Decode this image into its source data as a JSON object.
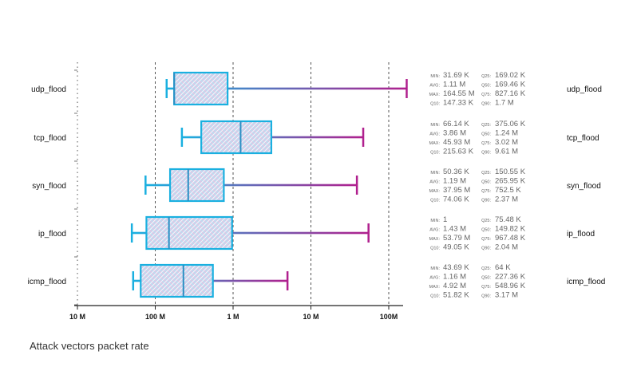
{
  "chart_data": {
    "type": "boxplot",
    "title": "Attack vectors packet rate",
    "x_scale": "log",
    "x_ticks": [
      {
        "value": 10000000,
        "label": "10 M"
      },
      {
        "value": 100000000,
        "label": "100 M"
      },
      {
        "value": 1000000000,
        "label": "1 M"
      },
      {
        "value": 10000000000,
        "label": "10 M"
      },
      {
        "value": 100000000000,
        "label": "100M"
      }
    ],
    "grid": true,
    "colors": {
      "start": "#1ab0e0",
      "end": "#b0208e",
      "grid": "#555555"
    },
    "stat_keys": [
      "MIN:",
      "AVG:",
      "MAX:",
      "Q10:",
      "Q25:",
      "Q50:",
      "Q75:",
      "Q90:"
    ],
    "categories": [
      {
        "name": "udp_flood",
        "box": {
          "whisker_low": 140000000,
          "q_left": 175000000,
          "median": 175000000,
          "q_right": 850000000,
          "whisker_high": 170000000000
        },
        "stats": {
          "min": "31.69 K",
          "avg": "1.11 M",
          "max": "164.55 M",
          "q10": "147.33 K",
          "q25": "169.02 K",
          "q50": "169.46 K",
          "q75": "827.16 K",
          "q90": "1.7 M"
        }
      },
      {
        "name": "tcp_flood",
        "box": {
          "whisker_low": 220000000,
          "q_left": 390000000,
          "median": 1250000000,
          "q_right": 3100000000,
          "whisker_high": 47000000000
        },
        "stats": {
          "min": "66.14 K",
          "avg": "3.86 M",
          "max": "45.93 M",
          "q10": "215.63 K",
          "q25": "375.06 K",
          "q50": "1.24 M",
          "q75": "3.02 M",
          "q90": "9.61 M"
        }
      },
      {
        "name": "syn_flood",
        "box": {
          "whisker_low": 75000000,
          "q_left": 155000000,
          "median": 265000000,
          "q_right": 760000000,
          "whisker_high": 39000000000
        },
        "stats": {
          "min": "50.36 K",
          "avg": "1.19 M",
          "max": "37.95 M",
          "q10": "74.06 K",
          "q25": "150.55 K",
          "q50": "265.95 K",
          "q75": "752.5 K",
          "q90": "2.37 M"
        }
      },
      {
        "name": "ip_flood",
        "box": {
          "whisker_low": 50000000,
          "q_left": 77000000,
          "median": 150000000,
          "q_right": 970000000,
          "whisker_high": 55000000000
        },
        "stats": {
          "min": "1",
          "avg": "1.43 M",
          "max": "53.79 M",
          "q10": "49.05 K",
          "q25": "75.48 K",
          "q50": "149.82 K",
          "q75": "967.48 K",
          "q90": "2.04 M"
        }
      },
      {
        "name": "icmp_flood",
        "box": {
          "whisker_low": 52000000,
          "q_left": 65000000,
          "median": 230000000,
          "q_right": 550000000,
          "whisker_high": 5000000000
        },
        "stats": {
          "min": "43.69 K",
          "avg": "1.16 M",
          "max": "4.92 M",
          "q10": "51.82 K",
          "q25": "64 K",
          "q50": "227.36 K",
          "q75": "548.96 K",
          "q90": "3.17 M"
        }
      }
    ]
  }
}
